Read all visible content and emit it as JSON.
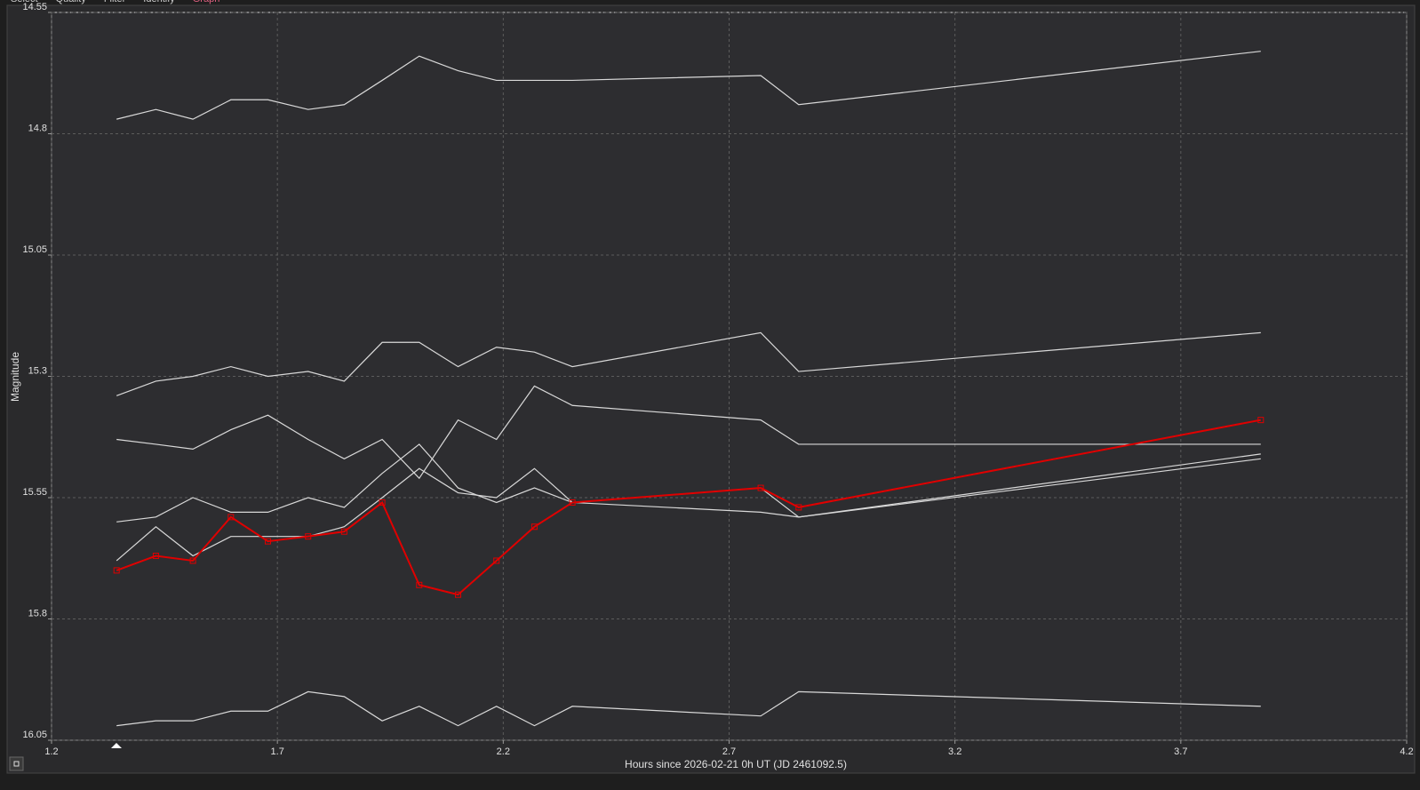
{
  "tabs": [
    "Select",
    "Quality",
    "Filter",
    "Identify",
    "Graph"
  ],
  "chart_data": {
    "type": "line",
    "xlabel": "Hours since 2026-02-21 0h UT (JD 2461092.5)",
    "ylabel": "Magnitude",
    "x": [
      1.344,
      1.431,
      1.513,
      1.597,
      1.679,
      1.768,
      1.848,
      1.932,
      2.014,
      2.1,
      2.185,
      2.269,
      2.353,
      2.77,
      2.854,
      3.877
    ],
    "series": [
      {
        "color": "#d9d9d9",
        "values": [
          14.77,
          14.75,
          14.77,
          14.73,
          14.73,
          14.75,
          14.74,
          14.69,
          14.64,
          14.67,
          14.69,
          14.69,
          14.69,
          14.68,
          14.74,
          14.63
        ]
      },
      {
        "color": "#d9d9d9",
        "values": [
          15.34,
          15.31,
          15.3,
          15.28,
          15.3,
          15.29,
          15.31,
          15.23,
          15.23,
          15.28,
          15.24,
          15.25,
          15.28,
          15.21,
          15.29,
          15.21
        ]
      },
      {
        "color": "#d9d9d9",
        "values": [
          15.43,
          15.44,
          15.45,
          15.41,
          15.38,
          15.43,
          15.47,
          15.43,
          15.51,
          15.39,
          15.43,
          15.32,
          15.36,
          15.39,
          15.44,
          15.44
        ]
      },
      {
        "color": "#d9d9d9",
        "values": [
          15.6,
          15.59,
          15.55,
          15.58,
          15.58,
          15.55,
          15.57,
          15.5,
          15.44,
          15.53,
          15.56,
          15.53,
          15.56,
          15.58,
          15.59,
          15.47
        ]
      },
      {
        "color": "#d9d9d9",
        "values": [
          15.68,
          15.61,
          15.67,
          15.63,
          15.63,
          15.63,
          15.61,
          15.55,
          15.49,
          15.54,
          15.55,
          15.49,
          15.56,
          15.53,
          15.59,
          15.46
        ]
      },
      {
        "color": "#d9d9d9",
        "values": [
          16.02,
          16.01,
          16.01,
          15.99,
          15.99,
          15.95,
          15.96,
          16.01,
          15.98,
          16.02,
          15.98,
          16.02,
          15.98,
          16.0,
          15.95,
          15.98
        ]
      },
      {
        "color": "#e00000",
        "marker": "square",
        "values": [
          15.7,
          15.67,
          15.68,
          15.59,
          15.64,
          15.63,
          15.62,
          15.56,
          15.73,
          15.75,
          15.68,
          15.61,
          15.56,
          15.53,
          15.57,
          15.39
        ]
      }
    ],
    "xlim": [
      1.2,
      4.2
    ],
    "xticks": [
      1.2,
      1.7,
      2.2,
      2.7,
      3.2,
      3.7,
      4.2
    ],
    "ylim": [
      14.55,
      16.05
    ],
    "yticks": [
      14.55,
      14.8,
      15.05,
      15.3,
      15.55,
      15.8,
      16.05
    ],
    "y_inverted": true,
    "grid": true
  }
}
